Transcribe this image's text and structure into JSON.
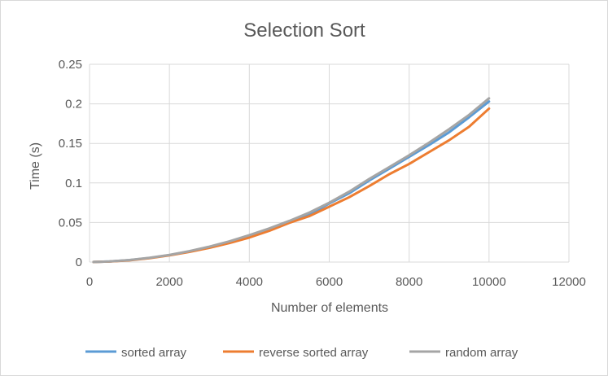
{
  "chart_data": {
    "type": "line",
    "title": "Selection Sort",
    "xlabel": "Number of elements",
    "ylabel": "Time (s)",
    "xlim": [
      0,
      12000
    ],
    "ylim": [
      0,
      0.25
    ],
    "x_ticks": [
      "0",
      "2000",
      "4000",
      "6000",
      "8000",
      "10000",
      "12000"
    ],
    "y_ticks": [
      "0",
      "0.05",
      "0.1",
      "0.15",
      "0.2",
      "0.25"
    ],
    "grid": true,
    "legend_position": "bottom",
    "x": [
      100,
      500,
      1000,
      1500,
      2000,
      2500,
      3000,
      3500,
      4000,
      4500,
      5000,
      5500,
      6000,
      6500,
      7000,
      7500,
      8000,
      8500,
      9000,
      9500,
      10000
    ],
    "series": [
      {
        "name": "sorted array",
        "color": "#5b9bd5",
        "values": [
          0.0001,
          0.0008,
          0.0025,
          0.0052,
          0.0088,
          0.0135,
          0.019,
          0.0255,
          0.033,
          0.0415,
          0.051,
          0.06,
          0.074,
          0.087,
          0.103,
          0.118,
          0.133,
          0.148,
          0.164,
          0.183,
          0.203
        ]
      },
      {
        "name": "reverse sorted array",
        "color": "#ed7d31",
        "values": [
          0.0001,
          0.0007,
          0.0022,
          0.0049,
          0.0085,
          0.0128,
          0.018,
          0.024,
          0.031,
          0.0395,
          0.0495,
          0.058,
          0.07,
          0.082,
          0.096,
          0.111,
          0.124,
          0.139,
          0.154,
          0.171,
          0.194
        ]
      },
      {
        "name": "random array",
        "color": "#a5a5a5",
        "values": [
          0.0001,
          0.0008,
          0.0026,
          0.0054,
          0.009,
          0.0138,
          0.0195,
          0.0262,
          0.034,
          0.0425,
          0.052,
          0.0625,
          0.075,
          0.089,
          0.105,
          0.12,
          0.135,
          0.151,
          0.168,
          0.186,
          0.207
        ]
      }
    ]
  }
}
